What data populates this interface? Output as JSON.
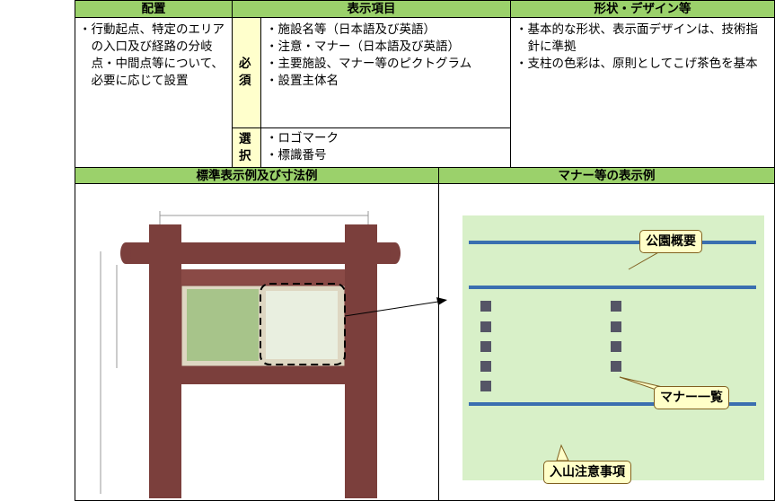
{
  "table": {
    "header": [
      "配置",
      "表示項目",
      "形状・デザイン等"
    ],
    "placement": "・行動起点、特定のエリアの入口及び経路の分岐点・中間点等について、必要に応じて設置",
    "required_label": "必須",
    "required_items": [
      "・施設名等（日本語及び英語）",
      "・注意・マナー（日本語及び英語）",
      "・主要施設、マナー等のピクトグラム",
      "・設置主体名"
    ],
    "optional_label": "選択",
    "optional_items": [
      "・ロゴマーク",
      "・標識番号"
    ],
    "design_items": [
      "・基本的な形状、表示面デザインは、技術指針に準拠",
      "・支柱の色彩は、原則としてこげ茶色を基本"
    ],
    "example_headers": [
      "標準表示例及び寸法例",
      "マナー等の表示例"
    ],
    "callouts": [
      "公園概要",
      "マナー一覧",
      "入山注意事項"
    ]
  }
}
